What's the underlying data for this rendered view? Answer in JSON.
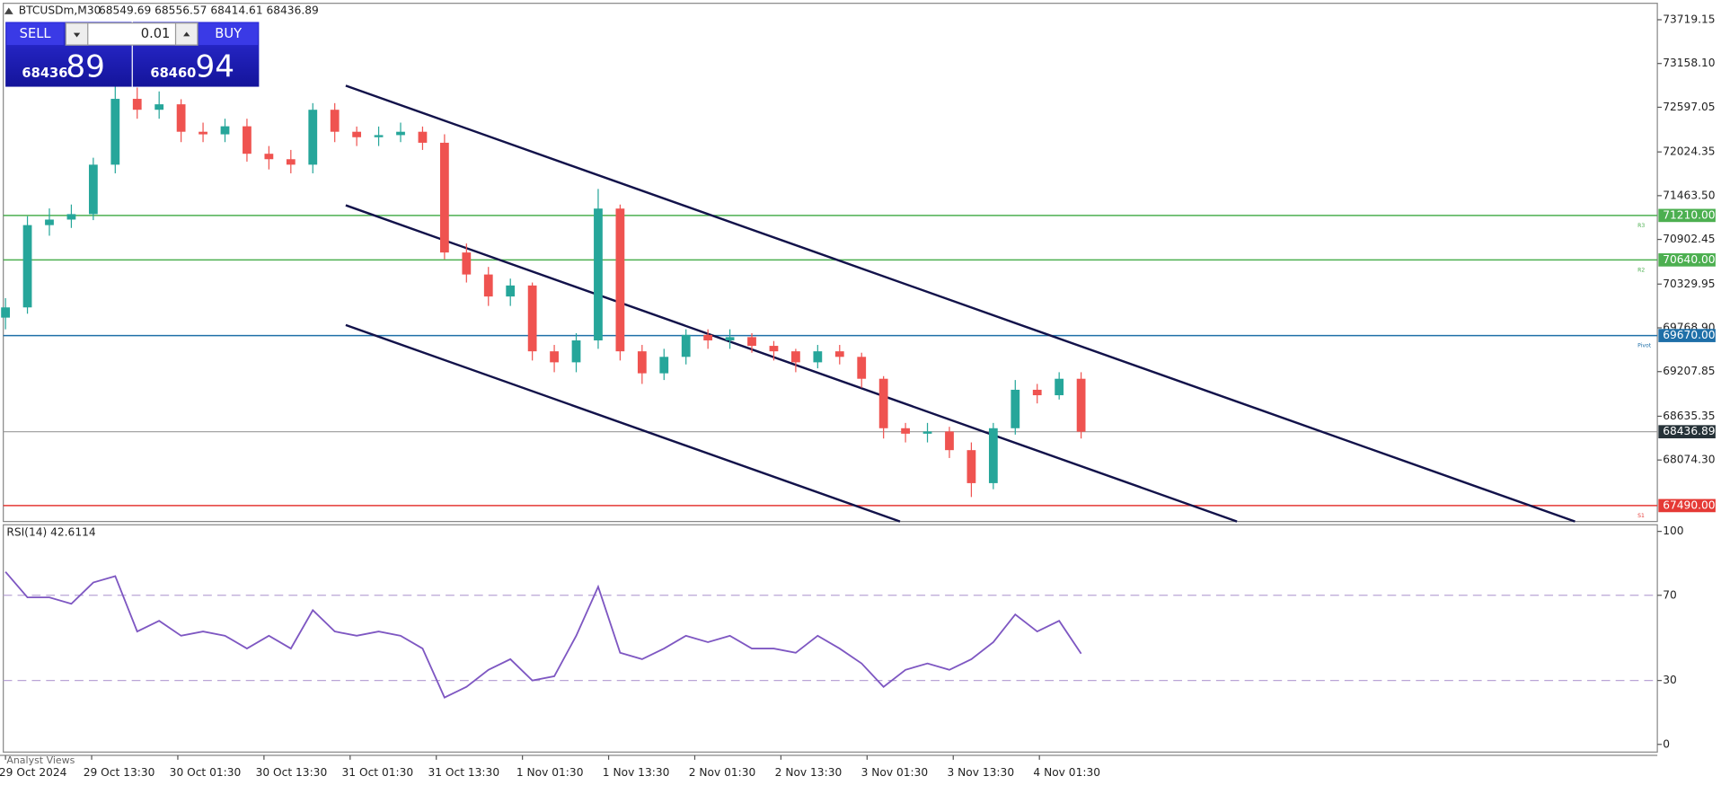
{
  "header": {
    "symbol": "BTCUSDm,M30",
    "ohlc": "68549.69 68556.57 68414.61 68436.89"
  },
  "trade_panel": {
    "sell": "SELL",
    "buy": "BUY",
    "volume": "0.01",
    "bid_main": "68436",
    "bid_pips": "89",
    "ask_main": "68460",
    "ask_pips": "94"
  },
  "chart_data": [
    {
      "type": "candlestick",
      "open": [
        69900,
        70031,
        71086,
        71157,
        71227,
        71861,
        72705,
        72565,
        72635,
        72283,
        72250,
        72353,
        72001,
        71931,
        71861,
        72565,
        72283,
        72213,
        72240,
        72283,
        72142,
        70735,
        70453,
        70171,
        70312,
        69468,
        69327,
        69608,
        71298,
        69468,
        69186,
        69397,
        69679,
        69608,
        69650,
        69538,
        69468,
        69327,
        69468,
        69397,
        69116,
        68482,
        68412,
        68440,
        68201,
        67778,
        68482,
        68975,
        68905,
        69116
      ],
      "high": [
        70150,
        71200,
        71300,
        71350,
        71950,
        72900,
        72850,
        72800,
        72700,
        72400,
        72450,
        72450,
        72100,
        72050,
        72650,
        72650,
        72350,
        72350,
        72400,
        72350,
        72250,
        70850,
        70550,
        70400,
        70350,
        69550,
        69700,
        71550,
        71350,
        69550,
        69500,
        69750,
        69750,
        69750,
        69700,
        69600,
        69500,
        69550,
        69550,
        69450,
        69150,
        68550,
        68550,
        68500,
        68300,
        68550,
        69100,
        69050,
        69200,
        69200
      ],
      "low": [
        69750,
        69950,
        70950,
        71050,
        71150,
        71750,
        72450,
        72450,
        72150,
        72150,
        72150,
        71900,
        71800,
        71750,
        71750,
        72150,
        72100,
        72100,
        72150,
        72050,
        70650,
        70350,
        70050,
        70050,
        69350,
        69200,
        69200,
        69500,
        69350,
        69050,
        69100,
        69300,
        69500,
        69500,
        69450,
        69350,
        69200,
        69250,
        69300,
        69000,
        68350,
        68300,
        68300,
        68100,
        67600,
        67700,
        68400,
        68800,
        68850,
        68350
      ],
      "close": [
        70031,
        71086,
        71157,
        71227,
        71861,
        72705,
        72565,
        72635,
        72283,
        72250,
        72353,
        72001,
        71931,
        71861,
        72565,
        72283,
        72213,
        72240,
        72283,
        72142,
        70735,
        70453,
        70171,
        70312,
        69468,
        69327,
        69608,
        71298,
        69468,
        69186,
        69397,
        69679,
        69608,
        69650,
        69538,
        69468,
        69327,
        69468,
        69397,
        69116,
        68482,
        68412,
        68440,
        68201,
        67778,
        68482,
        68975,
        68905,
        69116,
        68437
      ],
      "up_color": "#26a69a",
      "down_color": "#ef5350",
      "ylim": [
        67286,
        73930
      ],
      "yticks": [
        73719.15,
        {
          "value": 73158.1,
          "label": "73158.10"
        },
        72597.05,
        72024.35,
        {
          "value": 71463.5,
          "label": "71463.50"
        },
        70902.45,
        70329.95,
        {
          "value": 69768.9,
          "label": "69768.90"
        },
        69207.85,
        68635.35,
        {
          "value": 68074.3,
          "label": "68074.30"
        }
      ],
      "x_labels": [
        "29 Oct 2024",
        "29 Oct 13:30",
        "30 Oct 01:30",
        "30 Oct 13:30",
        "31 Oct 01:30",
        "31 Oct 13:30",
        "1 Nov 01:30",
        "1 Nov 13:30",
        "2 Nov 01:30",
        "2 Nov 13:30",
        "3 Nov 01:30",
        "3 Nov 13:30",
        "4 Nov 01:30"
      ],
      "levels": [
        {
          "value": 71210,
          "label": "71210.00",
          "name": "R3",
          "color": "#4caf50"
        },
        {
          "value": 70640,
          "label": "70640.00",
          "name": "R2",
          "color": "#4caf50"
        },
        {
          "value": 69670,
          "label": "69670.00",
          "name": "Pivot",
          "color": "#1e6fa8"
        },
        {
          "value": 67490,
          "label": "67490.00",
          "name": "S1",
          "color": "#e53935"
        }
      ],
      "current_price": 68436.89,
      "channels": [
        {
          "x": [
            15.5,
            71.5
          ],
          "y": [
            72874,
            67286
          ]
        },
        {
          "x": [
            15.5,
            56.1
          ],
          "y": [
            71340,
            67286
          ]
        },
        {
          "x": [
            15.5,
            40.75
          ],
          "y": [
            69805,
            67286
          ]
        }
      ]
    },
    {
      "type": "line",
      "title": "RSI(14) 42.6114",
      "values": [
        81,
        69,
        69,
        66,
        76,
        79,
        53,
        58,
        51,
        53,
        51,
        45,
        51,
        45,
        63,
        53,
        51,
        53,
        51,
        45,
        22,
        27,
        35,
        40,
        30,
        32,
        51,
        74,
        43,
        40,
        45,
        51,
        48,
        51,
        45,
        45,
        43,
        51,
        45,
        38,
        27,
        35,
        38,
        35,
        40,
        48,
        61,
        53,
        58,
        42.61
      ],
      "color": "#7e57c2",
      "ylim": [
        0,
        100
      ],
      "yticks": [
        100,
        70,
        30,
        0
      ]
    }
  ],
  "footer": "Analyst Views"
}
